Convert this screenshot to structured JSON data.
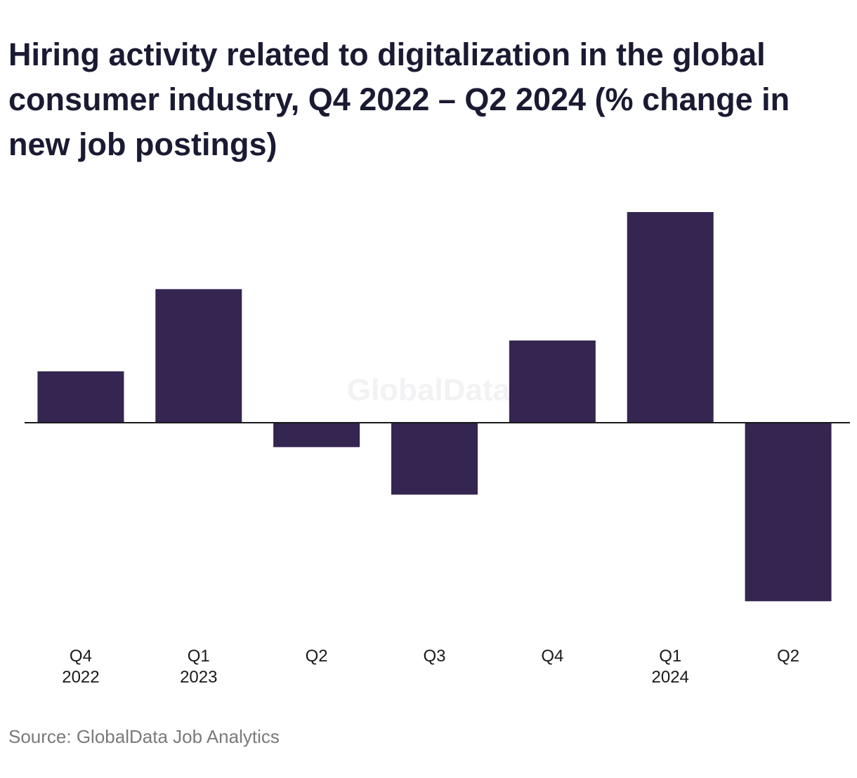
{
  "chart_data": {
    "type": "bar",
    "title": "Hiring activity related to digitalization in the global consumer industry, Q4 2022 – Q2 2024 (% change in new job postings)",
    "categories": [
      {
        "quarter": "Q4",
        "year": "2022"
      },
      {
        "quarter": "Q1",
        "year": "2023"
      },
      {
        "quarter": "Q2",
        "year": ""
      },
      {
        "quarter": "Q3",
        "year": ""
      },
      {
        "quarter": "Q4",
        "year": ""
      },
      {
        "quarter": "Q1",
        "year": "2024"
      },
      {
        "quarter": "Q2",
        "year": ""
      }
    ],
    "values": [
      4.0,
      10.4,
      -1.9,
      -5.6,
      6.4,
      16.4,
      -13.9
    ],
    "ylim": [
      -16.4,
      16.4
    ],
    "grid": false,
    "legend": "none",
    "colors": {
      "bar": "#352551",
      "axis": "#1a1a1a",
      "tick_text": "#1a1a1a"
    },
    "watermark": "GlobalData"
  },
  "footer": {
    "source": "Source: GlobalData Job Analytics"
  }
}
